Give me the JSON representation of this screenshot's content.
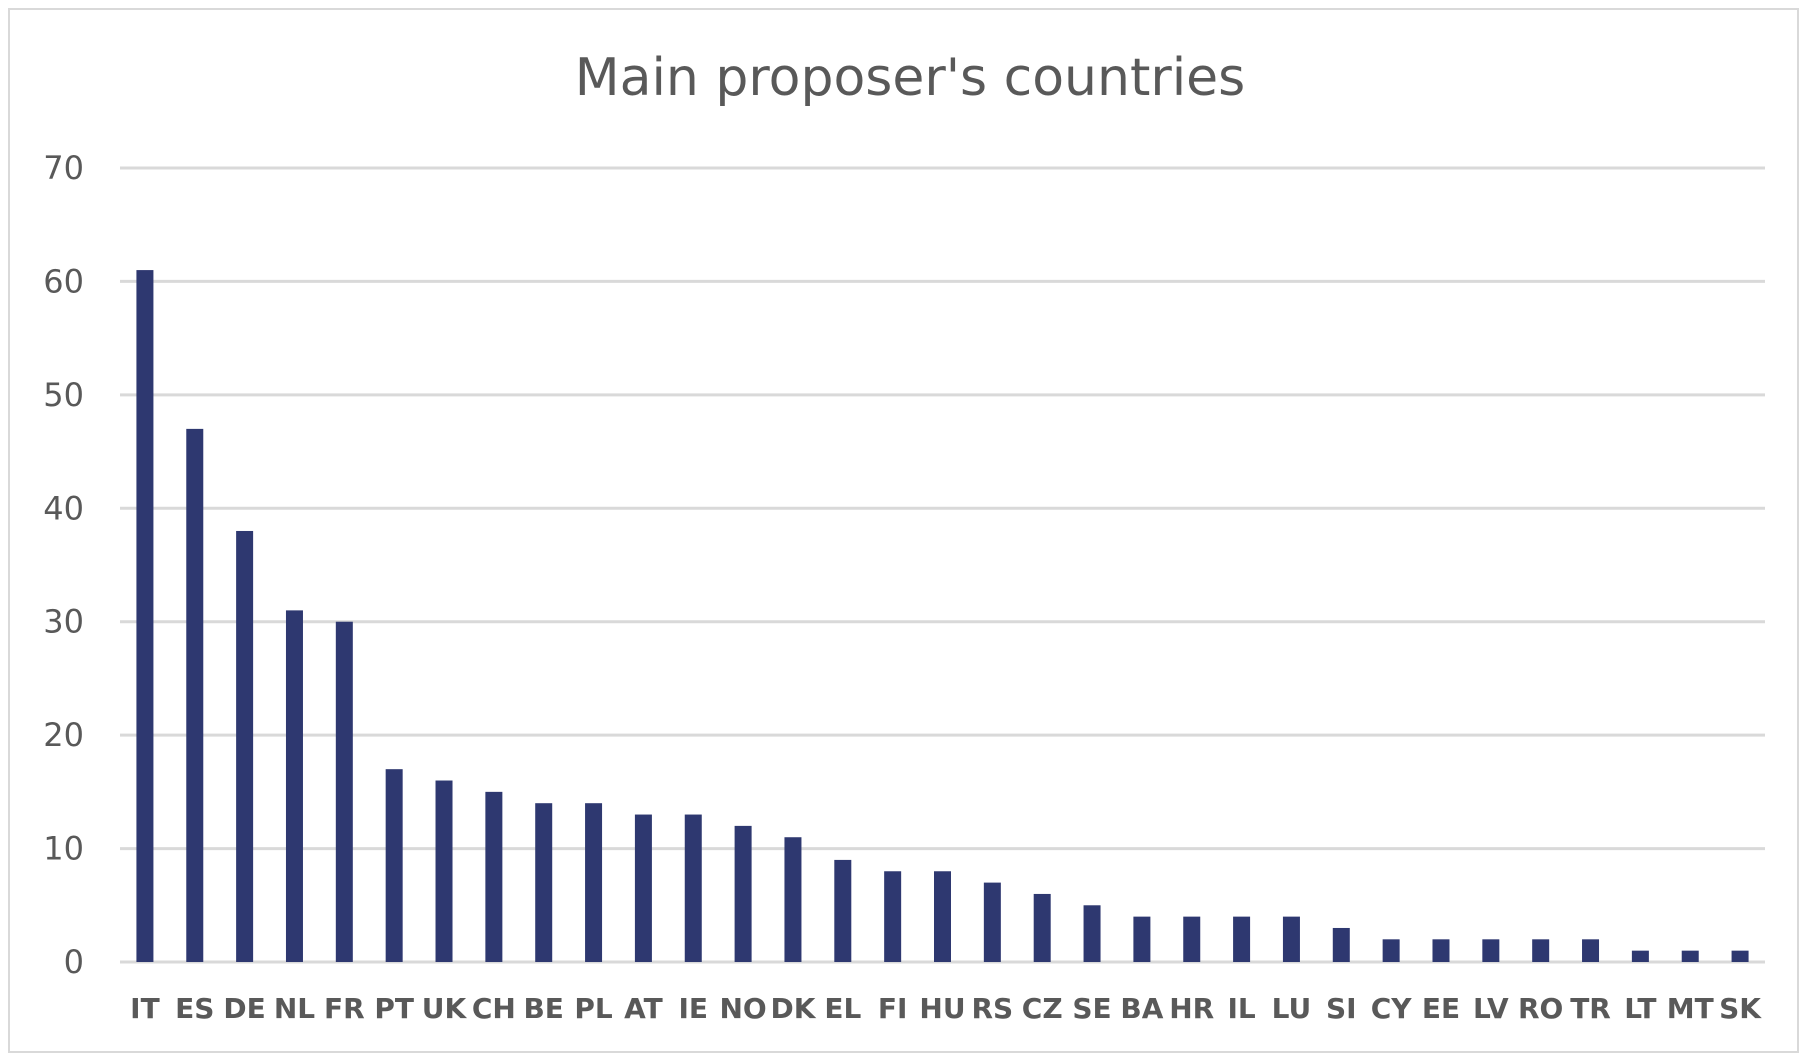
{
  "chart_data": {
    "type": "bar",
    "title": "Main proposer's countries",
    "xlabel": "",
    "ylabel": "",
    "ylim": [
      0,
      70
    ],
    "yticks": [
      "0",
      "10",
      "20",
      "30",
      "40",
      "50",
      "60",
      "70"
    ],
    "grid": true,
    "legend": "none",
    "bar_color": "#2e3870",
    "categories": [
      "IT",
      "ES",
      "DE",
      "NL",
      "FR",
      "PT",
      "UK",
      "CH",
      "BE",
      "PL",
      "AT",
      "IE",
      "NO",
      "DK",
      "EL",
      "FI",
      "HU",
      "RS",
      "CZ",
      "SE",
      "BA",
      "HR",
      "IL",
      "LU",
      "SI",
      "CY",
      "EE",
      "LV",
      "RO",
      "TR",
      "LT",
      "MT",
      "SK"
    ],
    "values": [
      61,
      47,
      38,
      31,
      30,
      17,
      16,
      15,
      14,
      14,
      13,
      13,
      12,
      11,
      9,
      8,
      8,
      7,
      6,
      5,
      4,
      4,
      4,
      4,
      3,
      2,
      2,
      2,
      2,
      2,
      1,
      1,
      1
    ]
  }
}
